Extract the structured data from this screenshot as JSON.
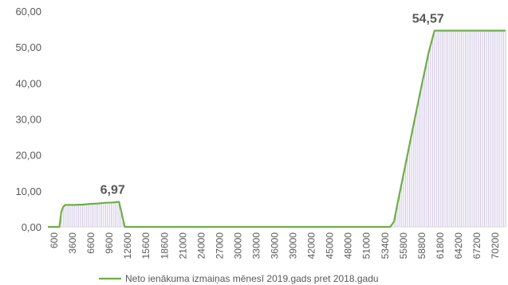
{
  "chart_data": {
    "type": "area",
    "title": "",
    "xlabel": "",
    "ylabel": "",
    "ylim": [
      0,
      60
    ],
    "yticks": [
      "0,00",
      "10,00",
      "20,00",
      "30,00",
      "40,00",
      "50,00",
      "60,00"
    ],
    "xticks": [
      "600",
      "3600",
      "6600",
      "9600",
      "12600",
      "15600",
      "18600",
      "21000",
      "24000",
      "27000",
      "30000",
      "33000",
      "36000",
      "39000",
      "42000",
      "45000",
      "48000",
      "51000",
      "53400",
      "55800",
      "58800",
      "61800",
      "64200",
      "67200",
      "70200"
    ],
    "x_step": 300,
    "x_min": 600,
    "x_max": 72000,
    "grid": false,
    "legend": "bottom",
    "series": [
      {
        "name": "Neto ienākuma izmaiņas mēnesī 2019.gads pret 2018.gadu",
        "color": "#70ad47",
        "fill": "#c9bde0",
        "points": [
          [
            600,
            0.0
          ],
          [
            1800,
            0.0
          ],
          [
            2400,
            0.0
          ],
          [
            2700,
            4.2
          ],
          [
            3000,
            5.6
          ],
          [
            3300,
            6.1
          ],
          [
            3600,
            6.1
          ],
          [
            4800,
            6.1
          ],
          [
            6000,
            6.2
          ],
          [
            7200,
            6.4
          ],
          [
            8400,
            6.5
          ],
          [
            9600,
            6.7
          ],
          [
            10800,
            6.8
          ],
          [
            11700,
            6.97
          ],
          [
            12600,
            0.0
          ],
          [
            13200,
            0.0
          ],
          [
            54000,
            0.0
          ],
          [
            54600,
            1.5
          ],
          [
            55200,
            7.0
          ],
          [
            56400,
            17.5
          ],
          [
            57600,
            28.0
          ],
          [
            58800,
            38.5
          ],
          [
            60000,
            48.5
          ],
          [
            60900,
            54.57
          ],
          [
            61800,
            54.57
          ],
          [
            64200,
            54.57
          ],
          [
            67200,
            54.57
          ],
          [
            70200,
            54.57
          ],
          [
            72000,
            54.57
          ]
        ],
        "data_labels": [
          {
            "x": 11700,
            "y": 6.97,
            "text": "6,97"
          },
          {
            "x": 60900,
            "y": 54.57,
            "text": "54,57"
          }
        ]
      }
    ]
  }
}
